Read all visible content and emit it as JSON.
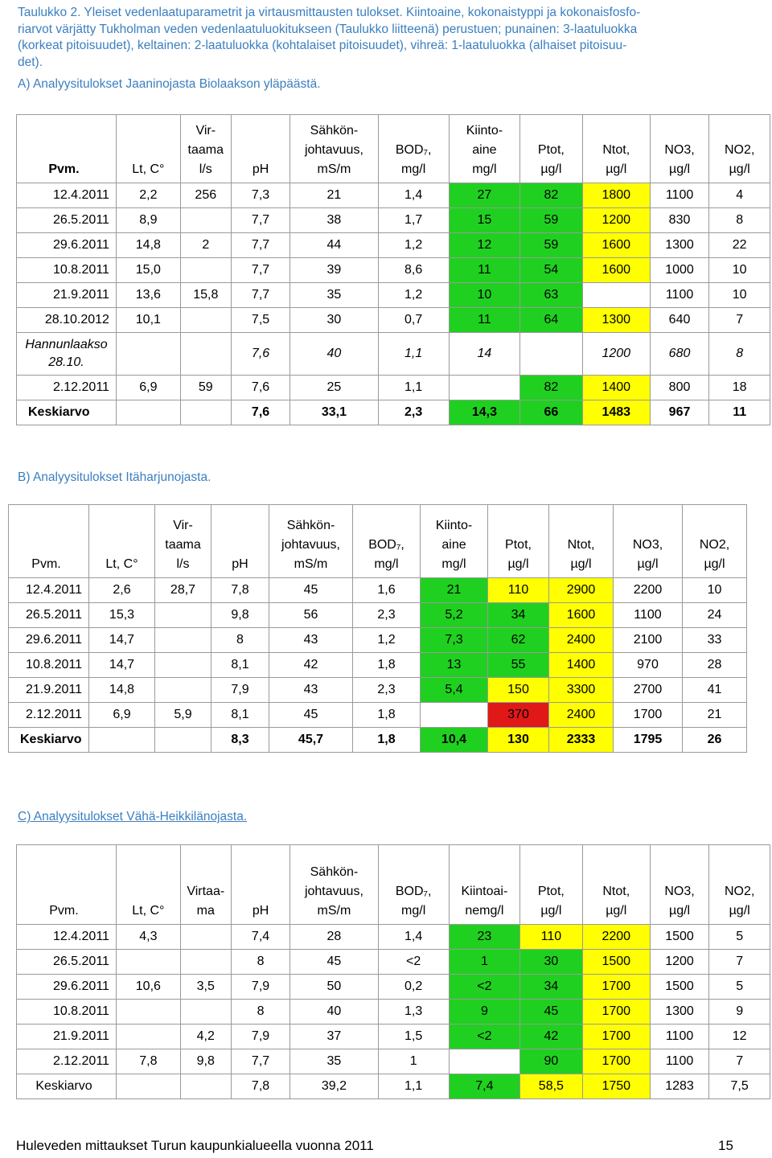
{
  "caption": {
    "lines": [
      "Taulukko 2. Yleiset vedenlaatuparametrit ja virtausmittausten tulokset. Kiintoaine, kokonaistyppi ja kokonaisfosfo-",
      "riarvot värjätty Tukholman veden vedenlaatuluokitukseen (Taulukko liitteenä) perustuen; punainen: 3-laatuluokka",
      "(korkeat pitoisuudet), keltainen: 2-laatuluokka (kohtalaiset pitoisuudet),  vihreä: 1-laatuluokka (alhaiset pitoisuu-",
      "det)."
    ]
  },
  "sections": [
    {
      "title": "A) Analyysitulokset Jaaninojasta Biolaakson yläpäästä.",
      "underline": false,
      "header": [
        [
          "Pvm."
        ],
        [
          "Lt, C°"
        ],
        [
          "Vir-",
          "taama",
          "l/s"
        ],
        [
          "pH"
        ],
        [
          "Sähkön-",
          "johtavuus,",
          "mS/m"
        ],
        [
          "BOD₇,",
          "mg/l"
        ],
        [
          "Kiinto-",
          "aine",
          "mg/l"
        ],
        [
          "Ptot,",
          "µg/l"
        ],
        [
          "Ntot,",
          "µg/l"
        ],
        [
          "NO3,",
          "µg/l"
        ],
        [
          "NO2,",
          "µg/l"
        ]
      ],
      "header_bold": true,
      "rows": [
        {
          "cells": [
            "12.4.2011",
            "2,2",
            "256",
            "7,3",
            "21",
            "1,4",
            "27",
            "82",
            "1800",
            "1100",
            "4"
          ],
          "colors": [
            "",
            "",
            "",
            "",
            "",
            "",
            "green",
            "green",
            "yellow",
            "",
            ""
          ]
        },
        {
          "cells": [
            "26.5.2011",
            "8,9",
            "",
            "7,7",
            "38",
            "1,7",
            "15",
            "59",
            "1200",
            "830",
            "8"
          ],
          "colors": [
            "",
            "",
            "",
            "",
            "",
            "",
            "green",
            "green",
            "yellow",
            "",
            ""
          ]
        },
        {
          "cells": [
            "29.6.2011",
            "14,8",
            "2",
            "7,7",
            "44",
            "1,2",
            "12",
            "59",
            "1600",
            "1300",
            "22"
          ],
          "colors": [
            "",
            "",
            "",
            "",
            "",
            "",
            "green",
            "green",
            "yellow",
            "",
            ""
          ]
        },
        {
          "cells": [
            "10.8.2011",
            "15,0",
            "",
            "7,7",
            "39",
            "8,6",
            "11",
            "54",
            "1600",
            "1000",
            "10"
          ],
          "colors": [
            "",
            "",
            "",
            "",
            "",
            "",
            "green",
            "green",
            "yellow",
            "",
            ""
          ]
        },
        {
          "cells": [
            "21.9.2011",
            "13,6",
            "15,8",
            "7,7",
            "35",
            "1,2",
            "10",
            "63",
            "",
            "1100",
            "10"
          ],
          "colors": [
            "",
            "",
            "",
            "",
            "",
            "",
            "green",
            "green",
            "",
            "",
            ""
          ]
        },
        {
          "cells": [
            "28.10.2012",
            "10,1",
            "",
            "7,5",
            "30",
            "0,7",
            "11",
            "64",
            "1300",
            "640",
            "7"
          ],
          "colors": [
            "",
            "",
            "",
            "",
            "",
            "",
            "green",
            "green",
            "yellow",
            "",
            ""
          ]
        },
        {
          "cells": [
            "Hannunlaakso 28.10.",
            "",
            "",
            "7,6",
            "40",
            "1,1",
            "14",
            "",
            "1200",
            "680",
            "8"
          ],
          "colors": [
            "",
            "",
            "",
            "",
            "",
            "",
            "",
            "",
            "",
            "",
            ""
          ],
          "italic": true,
          "tall": true
        },
        {
          "cells": [
            "2.12.2011",
            "6,9",
            "59",
            "7,6",
            "25",
            "1,1",
            "",
            "82",
            "1400",
            "800",
            "18"
          ],
          "colors": [
            "",
            "",
            "",
            "",
            "",
            "",
            "",
            "green",
            "yellow",
            "",
            ""
          ]
        },
        {
          "cells": [
            "Keskiarvo",
            "",
            "",
            "7,6",
            "33,1",
            "2,3",
            "14,3",
            "66",
            "1483",
            "967",
            "11"
          ],
          "colors": [
            "",
            "",
            "",
            "",
            "",
            "",
            "green",
            "green",
            "yellow",
            "",
            ""
          ],
          "avg": true
        }
      ]
    },
    {
      "title": "B) Analyysitulokset Itäharjunojasta.",
      "underline": false,
      "header": [
        [
          "Pvm."
        ],
        [
          "Lt, C°"
        ],
        [
          "Vir-",
          "taama",
          "l/s"
        ],
        [
          "pH"
        ],
        [
          "Sähkön-",
          "johtavuus,",
          "mS/m"
        ],
        [
          "BOD₇,",
          "mg/l"
        ],
        [
          "Kiinto-",
          "aine",
          "mg/l"
        ],
        [
          "Ptot,",
          "µg/l"
        ],
        [
          "Ntot,",
          "µg/l"
        ],
        [
          "NO3,",
          "µg/l"
        ],
        [
          "NO2,",
          "µg/l"
        ]
      ],
      "header_bold": false,
      "rows": [
        {
          "cells": [
            "12.4.2011",
            "2,6",
            "28,7",
            "7,8",
            "45",
            "1,6",
            "21",
            "110",
            "2900",
            "2200",
            "10"
          ],
          "colors": [
            "",
            "",
            "",
            "",
            "",
            "",
            "green",
            "yellow",
            "yellow",
            "",
            ""
          ]
        },
        {
          "cells": [
            "26.5.2011",
            "15,3",
            "",
            "9,8",
            "56",
            "2,3",
            "5,2",
            "34",
            "1600",
            "1100",
            "24"
          ],
          "colors": [
            "",
            "",
            "",
            "",
            "",
            "",
            "green",
            "green",
            "yellow",
            "",
            ""
          ]
        },
        {
          "cells": [
            "29.6.2011",
            "14,7",
            "",
            "8",
            "43",
            "1,2",
            "7,3",
            "62",
            "2400",
            "2100",
            "33"
          ],
          "colors": [
            "",
            "",
            "",
            "",
            "",
            "",
            "green",
            "green",
            "yellow",
            "",
            ""
          ]
        },
        {
          "cells": [
            "10.8.2011",
            "14,7",
            "",
            "8,1",
            "42",
            "1,8",
            "13",
            "55",
            "1400",
            "970",
            "28"
          ],
          "colors": [
            "",
            "",
            "",
            "",
            "",
            "",
            "green",
            "green",
            "yellow",
            "",
            ""
          ]
        },
        {
          "cells": [
            "21.9.2011",
            "14,8",
            "",
            "7,9",
            "43",
            "2,3",
            "5,4",
            "150",
            "3300",
            "2700",
            "41"
          ],
          "colors": [
            "",
            "",
            "",
            "",
            "",
            "",
            "green",
            "yellow",
            "yellow",
            "",
            ""
          ]
        },
        {
          "cells": [
            "2.12.2011",
            "6,9",
            "5,9",
            "8,1",
            "45",
            "1,8",
            "",
            "370",
            "2400",
            "1700",
            "21"
          ],
          "colors": [
            "",
            "",
            "",
            "",
            "",
            "",
            "",
            "red",
            "yellow",
            "",
            ""
          ]
        },
        {
          "cells": [
            "Keskiarvo",
            "",
            "",
            "8,3",
            "45,7",
            "1,8",
            "10,4",
            "130",
            "2333",
            "1795",
            "26"
          ],
          "colors": [
            "",
            "",
            "",
            "",
            "",
            "",
            "green",
            "yellow",
            "yellow",
            "",
            ""
          ],
          "avg": true
        }
      ]
    },
    {
      "title": "C) Analyysitulokset Vähä-Heikkilänojasta.",
      "underline": true,
      "header": [
        [
          "Pvm."
        ],
        [
          "Lt, C°"
        ],
        [
          "Virtaa-",
          "ma"
        ],
        [
          "pH"
        ],
        [
          "Sähkön-",
          "johtavuus,",
          "mS/m"
        ],
        [
          "BOD₇,",
          "mg/l"
        ],
        [
          "Kiintoai-",
          "nemg/l"
        ],
        [
          "Ptot,",
          "µg/l"
        ],
        [
          "Ntot,",
          "µg/l"
        ],
        [
          "NO3,",
          "µg/l"
        ],
        [
          "NO2,",
          "µg/l"
        ]
      ],
      "header_bold": false,
      "rows": [
        {
          "cells": [
            "12.4.2011",
            "4,3",
            "",
            "7,4",
            "28",
            "1,4",
            "23",
            "110",
            "2200",
            "1500",
            "5"
          ],
          "colors": [
            "",
            "",
            "",
            "",
            "",
            "",
            "green",
            "yellow",
            "yellow",
            "",
            ""
          ]
        },
        {
          "cells": [
            "26.5.2011",
            "",
            "",
            "8",
            "45",
            "<2",
            "1",
            "30",
            "1500",
            "1200",
            "7"
          ],
          "colors": [
            "",
            "",
            "",
            "",
            "",
            "",
            "green",
            "green",
            "yellow",
            "",
            ""
          ]
        },
        {
          "cells": [
            "29.6.2011",
            "10,6",
            "3,5",
            "7,9",
            "50",
            "0,2",
            "<2",
            "34",
            "1700",
            "1500",
            "5"
          ],
          "colors": [
            "",
            "",
            "",
            "",
            "",
            "",
            "green",
            "green",
            "yellow",
            "",
            ""
          ]
        },
        {
          "cells": [
            "10.8.2011",
            "",
            "",
            "8",
            "40",
            "1,3",
            "9",
            "45",
            "1700",
            "1300",
            "9"
          ],
          "colors": [
            "",
            "",
            "",
            "",
            "",
            "",
            "green",
            "green",
            "yellow",
            "",
            ""
          ]
        },
        {
          "cells": [
            "21.9.2011",
            "",
            "4,2",
            "7,9",
            "37",
            "1,5",
            "<2",
            "42",
            "1700",
            "1100",
            "12"
          ],
          "colors": [
            "",
            "",
            "",
            "",
            "",
            "",
            "green",
            "green",
            "yellow",
            "",
            ""
          ]
        },
        {
          "cells": [
            "2.12.2011",
            "7,8",
            "9,8",
            "7,7",
            "35",
            "1",
            "",
            "90",
            "1700",
            "1100",
            "7"
          ],
          "colors": [
            "",
            "",
            "",
            "",
            "",
            "",
            "",
            "green",
            "yellow",
            "",
            ""
          ]
        },
        {
          "cells": [
            "Keskiarvo",
            "",
            "",
            "7,8",
            "39,2",
            "1,1",
            "7,4",
            "58,5",
            "1750",
            "1283",
            "7,5"
          ],
          "colors": [
            "",
            "",
            "",
            "",
            "",
            "",
            "green",
            "yellow",
            "yellow",
            "",
            ""
          ],
          "avg": true,
          "plain": true
        }
      ]
    }
  ],
  "colors": {
    "green": "#20d020",
    "yellow": "#ffff00",
    "red": "#e01818",
    "caption": "#3b7fc0"
  },
  "footer": {
    "text": "Huleveden mittaukset Turun kaupunkialueella vuonna 2011",
    "page": "15"
  }
}
